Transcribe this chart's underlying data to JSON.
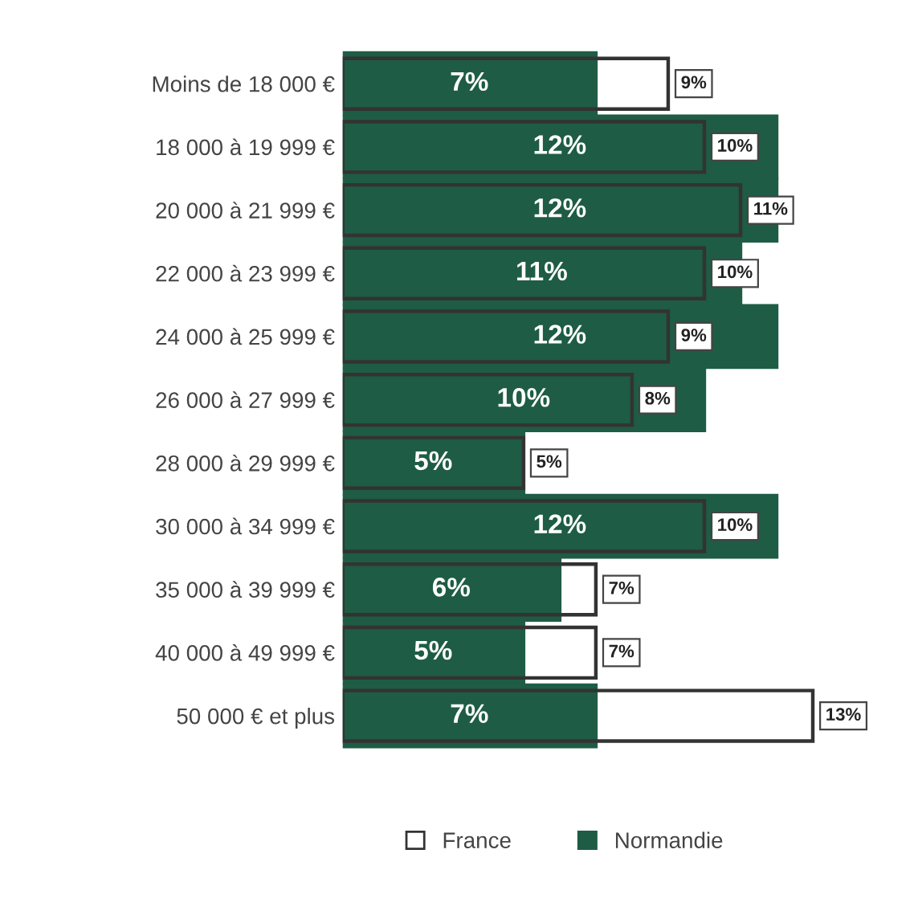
{
  "chart_data": {
    "type": "bar",
    "orientation": "horizontal",
    "categories": [
      "Moins de 18 000 €",
      "18 000 à 19 999 €",
      "20 000 à 21 999 €",
      "22 000 à 23 999 €",
      "24 000 à 25 999 €",
      "26 000 à 27 999 €",
      "28 000 à 29 999 €",
      "30 000 à 34 999 €",
      "35 000 à 39 999 €",
      "40 000 à 49 999 €",
      "50 000 € et plus"
    ],
    "series": [
      {
        "name": "France",
        "color": "#333333",
        "values": [
          9,
          10,
          11,
          10,
          9,
          8,
          5,
          10,
          7,
          7,
          13
        ],
        "value_labels": [
          "9%",
          "10%",
          "11%",
          "10%",
          "9%",
          "8%",
          "5%",
          "10%",
          "7%",
          "7%",
          "13%"
        ]
      },
      {
        "name": "Normandie",
        "color": "#1e5c45",
        "values": [
          7,
          12,
          12,
          11,
          12,
          10,
          5,
          12,
          6,
          5,
          7
        ],
        "value_labels": [
          "7%",
          "12%",
          "12%",
          "11%",
          "12%",
          "10%",
          "5%",
          "12%",
          "6%",
          "5%",
          "7%"
        ]
      }
    ],
    "legend": "bottom",
    "grid": false
  }
}
